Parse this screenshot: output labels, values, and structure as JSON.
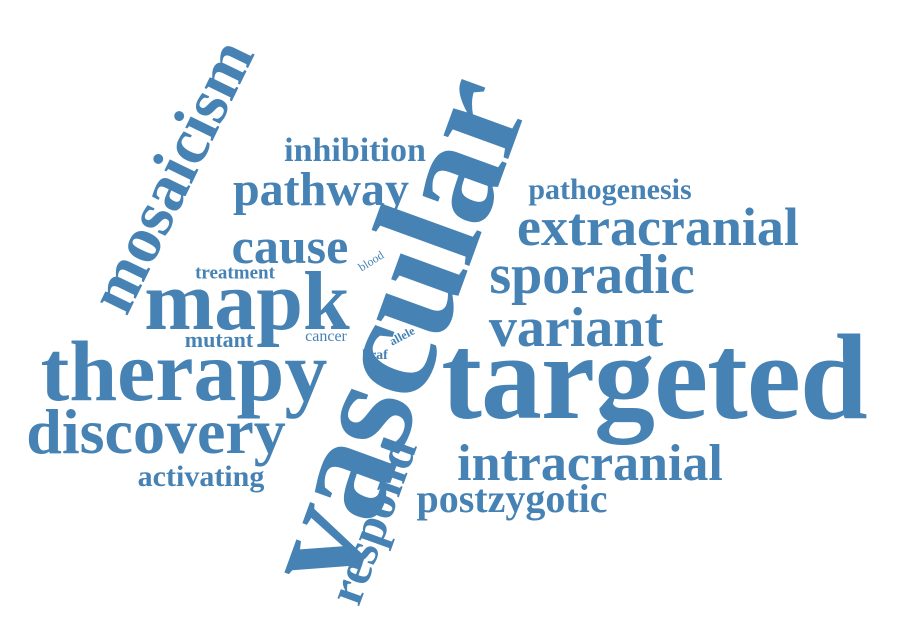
{
  "word_cloud": {
    "color": "#4682b4",
    "background": "#ffffff",
    "words": {
      "vascular": "vascular",
      "targeted": "targeted",
      "therapy": "therapy",
      "mosaicism": "mosaicism",
      "mapk": "mapk",
      "discovery": "discovery",
      "extracranial": "extracranial",
      "sporadic": "sporadic",
      "variant": "variant",
      "intracranial": "intracranial",
      "respond": "respond",
      "cause": "cause",
      "pathway": "pathway",
      "postzygotic": "postzygotic",
      "inhibition": "inhibition",
      "pathogenesis": "pathogenesis",
      "activating": "activating",
      "treatment": "treatment",
      "mutant": "mutant",
      "cancer": "cancer",
      "blood": "blood",
      "allele": "allele",
      "braf": "braf"
    }
  }
}
